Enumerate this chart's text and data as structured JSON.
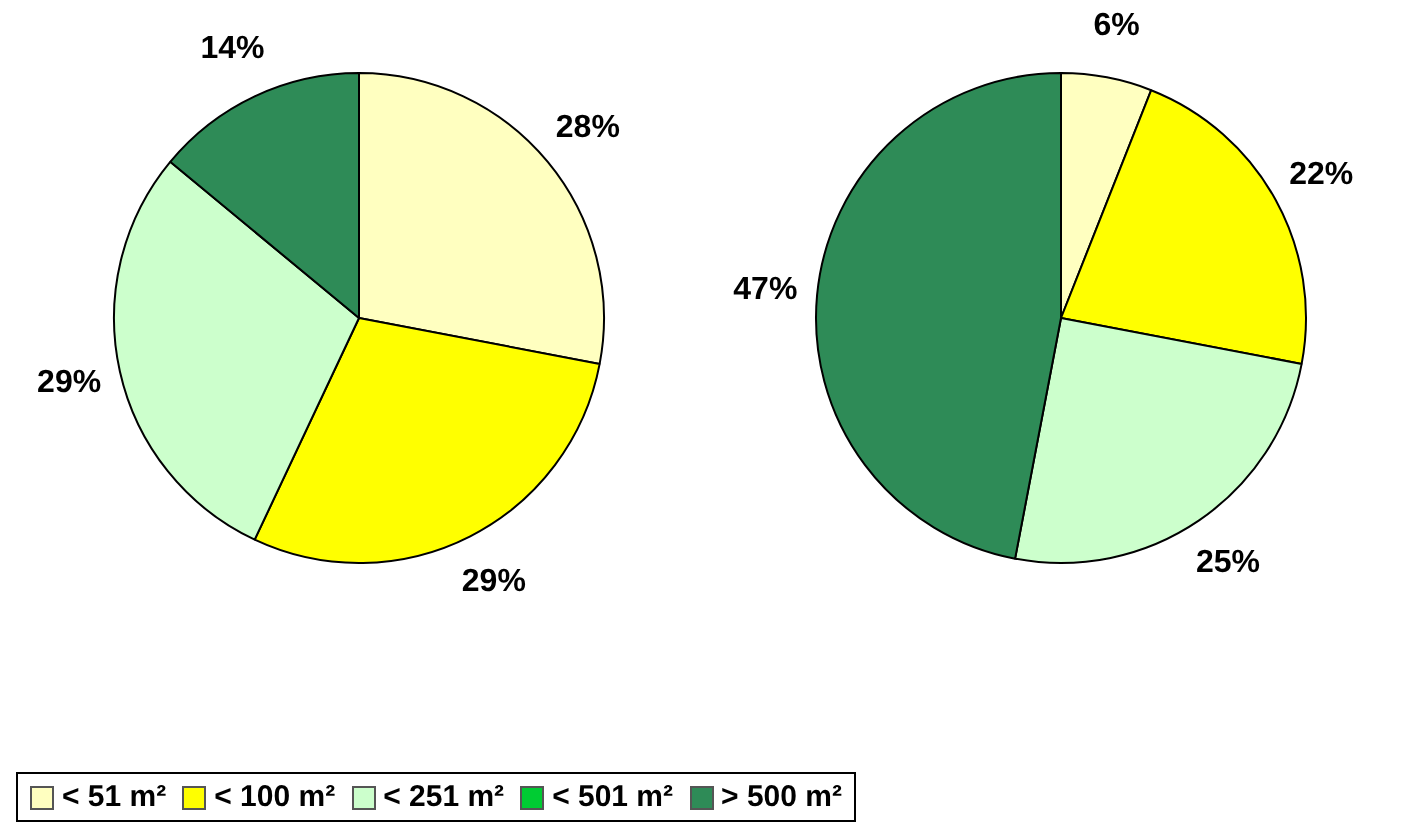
{
  "chart_data": [
    {
      "type": "pie",
      "categories": [
        "< 51 m²",
        "< 100 m²",
        "< 251 m²",
        "< 501 m²",
        "> 500 m²"
      ],
      "values": [
        28,
        29,
        29,
        0,
        14
      ],
      "colors": [
        "#ffffc0",
        "#ffff00",
        "#ccffcc",
        "#00cc33",
        "#2e8b57"
      ],
      "value_labels": [
        "28%",
        "29%",
        "29%",
        null,
        "14%"
      ],
      "legend": "bottom"
    },
    {
      "type": "pie",
      "categories": [
        null,
        null,
        null,
        null,
        null
      ],
      "values": [
        6,
        22,
        25,
        0,
        47
      ],
      "colors": [
        "#ffffc0",
        "#ffff00",
        "#ccffcc",
        "#00cc33",
        "#2e8b57"
      ],
      "value_labels": [
        "6%",
        "22%",
        "25%",
        null,
        "47%"
      ]
    }
  ]
}
